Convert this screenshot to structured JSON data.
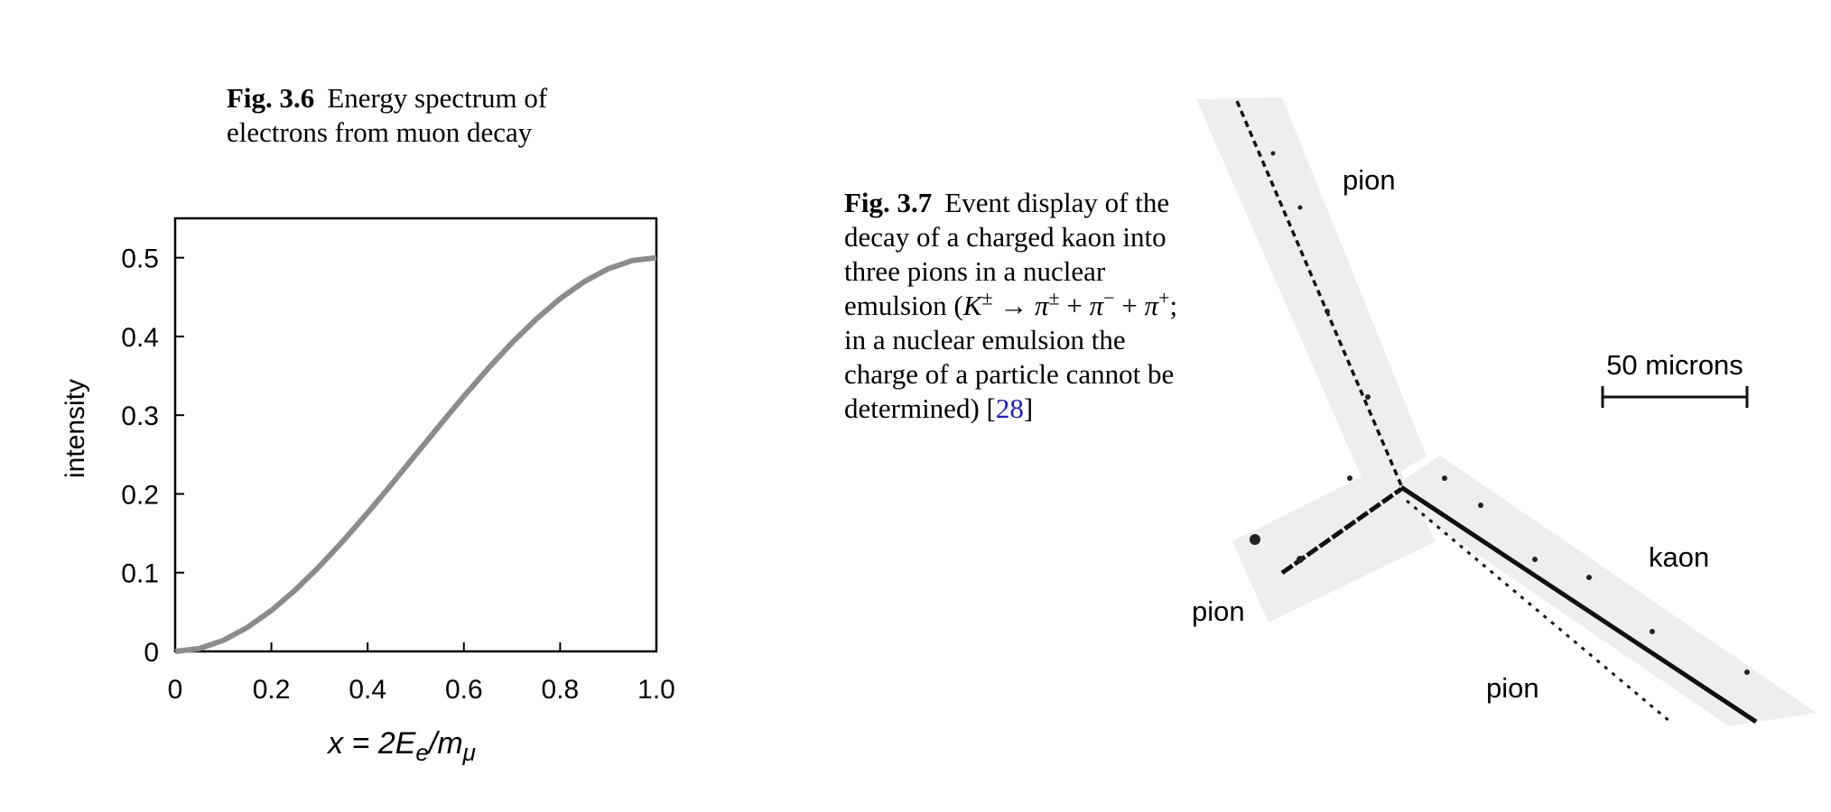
{
  "fig36": {
    "caption_label": "Fig. 3.6",
    "caption_line1": "Energy spectrum of",
    "caption_line2": "electrons from muon decay"
  },
  "fig37": {
    "caption_label": "Fig. 3.7",
    "caption_text1": "Event display of the decay of a charged kaon into three pions in a nuclear emulsion (",
    "caption_formula": {
      "k": "K",
      "k_sup": "±",
      "arrow": " → ",
      "pi": "π",
      "sup1": "±",
      "plus": " + ",
      "sup2": "−",
      "sup3": "+"
    },
    "caption_text2": "; in a nuclear emulsion the charge of a particle cannot be determined) [",
    "citation": "28",
    "caption_text3": "]",
    "labels": {
      "pion_top": "pion",
      "pion_left": "pion",
      "pion_bottom": "pion",
      "kaon": "kaon",
      "scale": "50 microns"
    },
    "colors": {
      "track": "#111111",
      "band": "#eeeeee",
      "citation": "#1a1ad0"
    }
  },
  "chart_data": {
    "type": "line",
    "title": "",
    "xlabel": "x = 2E_e/m_μ",
    "ylabel": "intensity",
    "xlim": [
      0,
      1.0
    ],
    "ylim": [
      0,
      0.55
    ],
    "xticks": [
      0,
      0.2,
      0.4,
      0.6,
      0.8,
      1.0
    ],
    "xtick_labels": [
      "0",
      "0.2",
      "0.4",
      "0.6",
      "0.8",
      "1.0"
    ],
    "yticks": [
      0,
      0.1,
      0.2,
      0.3,
      0.4,
      0.5
    ],
    "ytick_labels": [
      "0",
      "0.1",
      "0.2",
      "0.3",
      "0.4",
      "0.5"
    ],
    "grid": false,
    "line_color": "#8c8c8c",
    "series": [
      {
        "x": [
          0,
          0.05,
          0.1,
          0.15,
          0.2,
          0.25,
          0.3,
          0.35,
          0.4,
          0.45,
          0.5,
          0.55,
          0.6,
          0.65,
          0.7,
          0.75,
          0.8,
          0.85,
          0.9,
          0.95,
          1.0
        ],
        "y": [
          0,
          0.0036,
          0.014,
          0.0304,
          0.052,
          0.0781,
          0.108,
          0.1409,
          0.176,
          0.2126,
          0.25,
          0.2874,
          0.324,
          0.3591,
          0.392,
          0.4219,
          0.448,
          0.4696,
          0.486,
          0.4964,
          0.5
        ]
      }
    ]
  }
}
